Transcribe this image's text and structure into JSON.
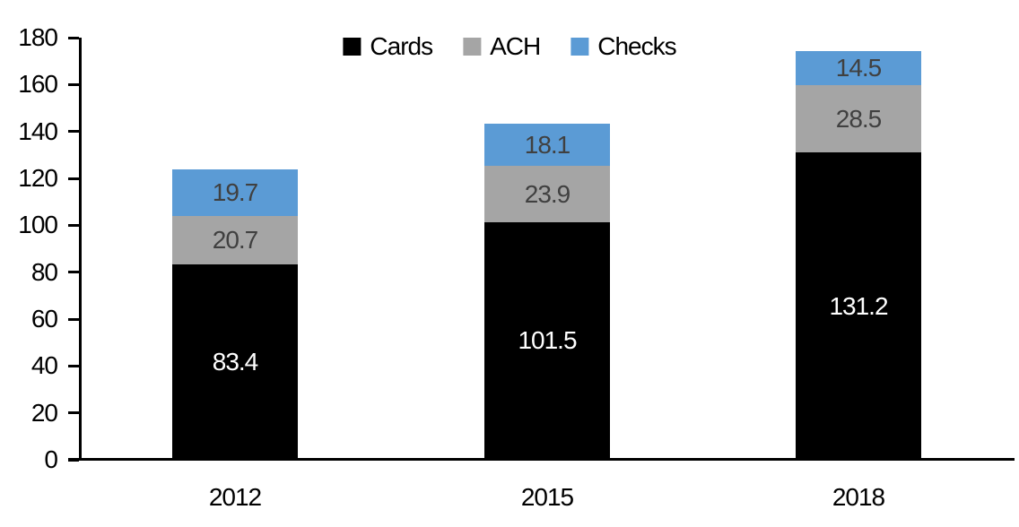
{
  "chart_data": {
    "type": "bar",
    "stacked": true,
    "title": "",
    "categories": [
      "2012",
      "2015",
      "2018"
    ],
    "series": [
      {
        "name": "Cards",
        "color": "#000000",
        "label_color": "#FFFFFF",
        "values": [
          83.4,
          101.5,
          131.2
        ]
      },
      {
        "name": "ACH",
        "color": "#A5A5A5",
        "label_color": "#404040",
        "values": [
          20.7,
          23.9,
          28.5
        ]
      },
      {
        "name": "Checks",
        "color": "#5B9BD5",
        "label_color": "#404040",
        "values": [
          19.7,
          18.1,
          14.5
        ]
      }
    ],
    "totals": [
      123.8,
      143.5,
      174.2
    ],
    "ylim": [
      0,
      180
    ],
    "ytick_step": 20,
    "yticks": [
      0,
      20,
      40,
      60,
      80,
      100,
      120,
      140,
      160,
      180
    ],
    "value_label_decimals": 1,
    "legend": {
      "position": "top",
      "entries": [
        "Cards",
        "ACH",
        "Checks"
      ]
    },
    "grid": false,
    "axis_color": "#000000",
    "background": "#FFFFFF"
  }
}
